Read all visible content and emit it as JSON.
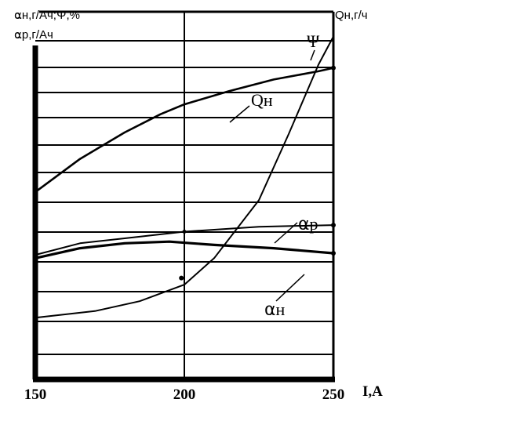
{
  "chart_data": {
    "type": "line",
    "title": "",
    "left_axis_labels": [
      "⍺н,г/Ач;Ψ,%",
      "⍺р,г/Ач"
    ],
    "right_axis_label": "Qн,г/ч",
    "xlabel": "I,A",
    "xlim": [
      150,
      250
    ],
    "x_ticks": [
      "150",
      "200",
      "250"
    ],
    "grid": "horizontal lines plus vertical line at 200",
    "series": [
      {
        "name": "Ψ",
        "color": "#000000",
        "x": [
          150,
          170,
          185,
          200,
          210,
          225,
          235,
          245,
          250
        ],
        "y": [
          3.4,
          3.8,
          4.4,
          5.4,
          7.0,
          10.5,
          14.5,
          18.7,
          20.4
        ]
      },
      {
        "name": "Qн",
        "color": "#000000",
        "x": [
          150,
          165,
          180,
          192,
          200,
          215,
          230,
          245,
          250
        ],
        "y": [
          11.0,
          13.0,
          14.6,
          15.7,
          16.3,
          17.1,
          17.8,
          18.3,
          18.5
        ]
      },
      {
        "name": "⍺р",
        "color": "#000000",
        "x": [
          150,
          165,
          180,
          200,
          225,
          250
        ],
        "y": [
          7.2,
          7.9,
          8.2,
          8.6,
          8.9,
          9.0
        ]
      },
      {
        "name": "⍺н",
        "color": "#000000",
        "x": [
          150,
          165,
          180,
          195,
          210,
          230,
          250
        ],
        "y": [
          7.0,
          7.6,
          7.9,
          8.0,
          7.8,
          7.6,
          7.3
        ]
      }
    ],
    "labels": [
      "Ψ",
      "Qн",
      "⍺р",
      "⍺н"
    ]
  }
}
